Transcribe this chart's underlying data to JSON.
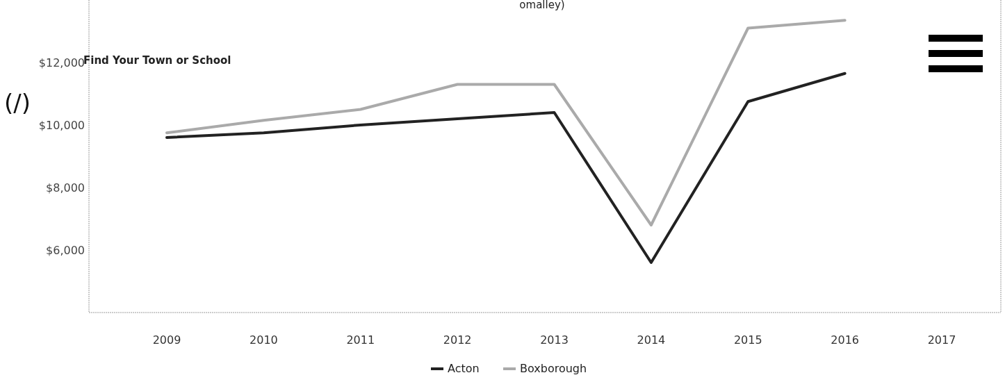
{
  "chart_data": {
    "type": "line",
    "categories": [
      "2009",
      "2010",
      "2011",
      "2012",
      "2013",
      "2014",
      "2015",
      "2016",
      "2017"
    ],
    "series": [
      {
        "name": "Acton",
        "color": "#222222",
        "values": [
          9600,
          9750,
          10000,
          10200,
          10400,
          5600,
          10750,
          11650,
          null
        ]
      },
      {
        "name": "Boxborough",
        "color": "#aaaaaa",
        "values": [
          9750,
          10150,
          10500,
          11300,
          11300,
          6800,
          13100,
          13350,
          null
        ]
      }
    ],
    "ylim": [
      4000,
      14000
    ],
    "yticks": [
      {
        "value": 6000,
        "label": "$6,000"
      },
      {
        "value": 8000,
        "label": "$8,000"
      },
      {
        "value": 10000,
        "label": "$10,000"
      },
      {
        "value": 12000,
        "label": "$12,000"
      }
    ],
    "grid": false,
    "legend": "bottom",
    "marker": "none",
    "line_style": "solid",
    "annotations": [
      "omalley)",
      "Find Your Town or School",
      "(/)"
    ]
  }
}
